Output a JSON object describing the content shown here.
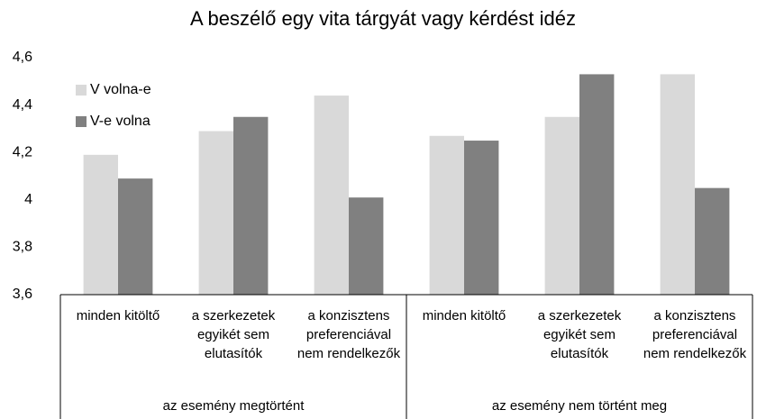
{
  "chart_data": {
    "type": "bar",
    "title": "A beszélő egy vita tárgyát vagy kérdést idéz",
    "groups": [
      {
        "label": "az esemény megtörtént",
        "categories": [
          "minden kitöltő",
          "a szerkezetek egyikét sem elutasítók",
          "a konzisztens preferenciával nem rendelkezők"
        ]
      },
      {
        "label": "az esemény nem történt meg",
        "categories": [
          "minden kitöltő",
          "a szerkezetek egyikét sem elutasítók",
          "a konzisztens preferenciával nem rendelkezők"
        ]
      }
    ],
    "series": [
      {
        "name": "V volna-e",
        "color": "#d9d9d9",
        "values": [
          4.19,
          4.29,
          4.44,
          4.27,
          4.35,
          4.53
        ]
      },
      {
        "name": "V-e volna",
        "color": "#808080",
        "values": [
          4.09,
          4.35,
          4.01,
          4.25,
          4.53,
          4.05
        ]
      }
    ],
    "ylim": [
      3.6,
      4.6
    ],
    "yticks": [
      {
        "value": 3.6,
        "label": "3,6"
      },
      {
        "value": 3.8,
        "label": "3,8"
      },
      4,
      {
        "value": 4.2,
        "label": "4,2"
      },
      {
        "value": 4.4,
        "label": "4,4"
      },
      {
        "value": 4.6,
        "label": "4,6"
      }
    ],
    "grid": false,
    "legend": "top-left"
  }
}
